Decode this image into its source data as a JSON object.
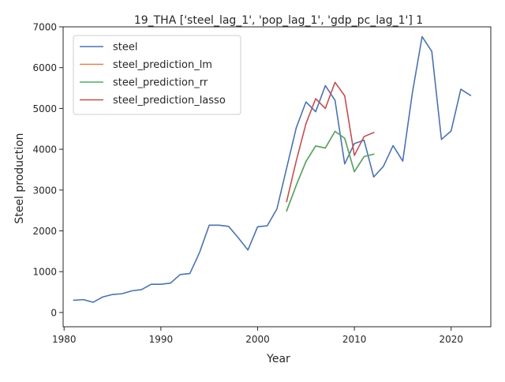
{
  "chart_data": {
    "type": "line",
    "title": "19_THA ['steel_lag_1', 'pop_lag_1', 'gdp_pc_lag_1'] 1",
    "xlabel": "Year",
    "ylabel": "Steel production",
    "xlim": [
      1979.9,
      2024.1
    ],
    "ylim": [
      -350,
      7000
    ],
    "xticks": [
      1980,
      1990,
      2000,
      2010,
      2020
    ],
    "yticks": [
      0,
      1000,
      2000,
      3000,
      4000,
      5000,
      6000,
      7000
    ],
    "grid": false,
    "legend_position": "top-left",
    "series": [
      {
        "name": "steel",
        "color": "#4c72b0",
        "x": [
          1981,
          1982,
          1983,
          1984,
          1985,
          1986,
          1987,
          1988,
          1989,
          1990,
          1991,
          1992,
          1993,
          1994,
          1995,
          1996,
          1997,
          1998,
          1999,
          2000,
          2001,
          2002,
          2003,
          2004,
          2005,
          2006,
          2007,
          2008,
          2009,
          2010,
          2011,
          2012,
          2013,
          2014,
          2015,
          2016,
          2017,
          2018,
          2019,
          2020,
          2021,
          2022
        ],
        "y": [
          300,
          315,
          250,
          380,
          440,
          460,
          530,
          560,
          690,
          690,
          720,
          930,
          955,
          1470,
          2140,
          2140,
          2110,
          1830,
          1530,
          2100,
          2125,
          2540,
          3540,
          4530,
          5160,
          4920,
          5560,
          5200,
          3640,
          4140,
          4220,
          3320,
          3580,
          4090,
          3710,
          5390,
          6760,
          6400,
          4240,
          4450,
          5470,
          5320
        ]
      },
      {
        "name": "steel_prediction_lm",
        "color": "#dd8452",
        "x": [
          2003,
          2004,
          2005,
          2006,
          2007,
          2008,
          2009,
          2010,
          2011,
          2012
        ],
        "y": [
          2490,
          3120,
          3700,
          4080,
          4030,
          4440,
          4270,
          3450,
          3820,
          3880
        ]
      },
      {
        "name": "steel_prediction_rr",
        "color": "#55a868",
        "x": [
          2003,
          2004,
          2005,
          2006,
          2007,
          2008,
          2009,
          2010,
          2011,
          2012
        ],
        "y": [
          2490,
          3120,
          3700,
          4080,
          4030,
          4440,
          4270,
          3450,
          3820,
          3880
        ]
      },
      {
        "name": "steel_prediction_lasso",
        "color": "#c44e52",
        "x": [
          2003,
          2004,
          2005,
          2006,
          2007,
          2008,
          2009,
          2010,
          2011,
          2012
        ],
        "y": [
          2720,
          3720,
          4630,
          5240,
          5000,
          5640,
          5310,
          3850,
          4310,
          4410
        ]
      }
    ]
  }
}
